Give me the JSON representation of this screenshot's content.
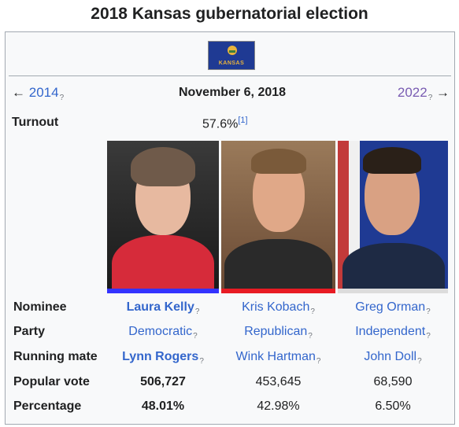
{
  "title": "2018 Kansas gubernatorial election",
  "flag": {
    "text": "KANSAS"
  },
  "nav": {
    "prev_arrow": "←",
    "prev": "2014",
    "next": "2022",
    "next_arrow": "→",
    "help": "?"
  },
  "date": "November 6, 2018",
  "turnout": {
    "label": "Turnout",
    "value": "57.6%",
    "ref": "[1]"
  },
  "rows": {
    "nominee": {
      "label": "Nominee",
      "values": [
        "Laura Kelly",
        "Kris Kobach",
        "Greg Orman"
      ]
    },
    "party": {
      "label": "Party",
      "values": [
        "Democratic",
        "Republican",
        "Independent"
      ]
    },
    "running_mate": {
      "label": "Running mate",
      "values": [
        "Lynn Rogers",
        "Wink Hartman",
        "John Doll"
      ]
    },
    "popular_vote": {
      "label": "Popular vote",
      "values": [
        "506,727",
        "453,645",
        "68,590"
      ]
    },
    "percentage": {
      "label": "Percentage",
      "values": [
        "48.01%",
        "42.98%",
        "6.50%"
      ]
    }
  },
  "colors": {
    "democratic": "#3333ff",
    "republican": "#e81b23",
    "independent": "#dcdcdc",
    "link": "#3366cc"
  }
}
